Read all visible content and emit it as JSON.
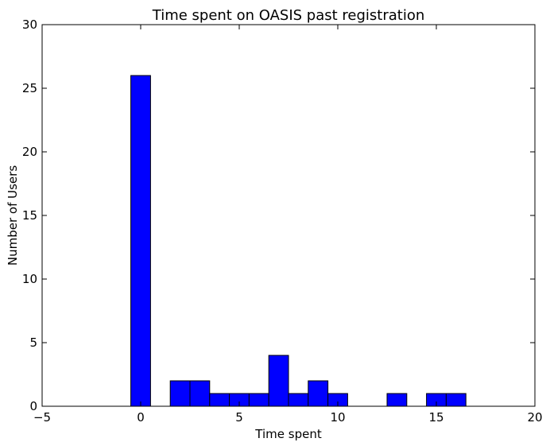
{
  "chart_data": {
    "type": "bar",
    "title": "Time spent on OASIS past registration",
    "xlabel": "Time spent",
    "ylabel": "Number of Users",
    "xlim": [
      -5,
      20
    ],
    "ylim": [
      0,
      30
    ],
    "xticks": [
      -5,
      0,
      5,
      10,
      15,
      20
    ],
    "yticks": [
      0,
      5,
      10,
      15,
      20,
      25,
      30
    ],
    "grid": false,
    "bar_color": "#0000ff",
    "bin_width": 1,
    "bins": [
      {
        "x": 0,
        "value": 26
      },
      {
        "x": 1,
        "value": 0
      },
      {
        "x": 2,
        "value": 2
      },
      {
        "x": 3,
        "value": 2
      },
      {
        "x": 4,
        "value": 1
      },
      {
        "x": 5,
        "value": 1
      },
      {
        "x": 6,
        "value": 1
      },
      {
        "x": 7,
        "value": 4
      },
      {
        "x": 8,
        "value": 1
      },
      {
        "x": 9,
        "value": 2
      },
      {
        "x": 10,
        "value": 1
      },
      {
        "x": 11,
        "value": 0
      },
      {
        "x": 12,
        "value": 0
      },
      {
        "x": 13,
        "value": 1
      },
      {
        "x": 14,
        "value": 0
      },
      {
        "x": 15,
        "value": 1
      },
      {
        "x": 16,
        "value": 1
      },
      {
        "x": 17,
        "value": 0
      },
      {
        "x": 18,
        "value": 0
      }
    ]
  }
}
